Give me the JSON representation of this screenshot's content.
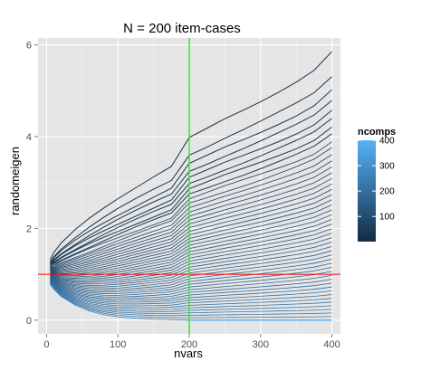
{
  "chart_data": {
    "type": "line",
    "title": "N = 200 item-cases",
    "xlabel": "nvars",
    "ylabel": "randomeigen",
    "xlim": [
      -12,
      412
    ],
    "ylim": [
      -0.3,
      6.15
    ],
    "x_ticks": [
      0,
      100,
      200,
      300,
      400
    ],
    "y_ticks": [
      0,
      2,
      4,
      6
    ],
    "x_tick_labels": [
      "0",
      "100",
      "200",
      "300",
      "400"
    ],
    "y_tick_labels": [
      "0",
      "2",
      "4",
      "6"
    ],
    "grid": true,
    "background_color": "#e5e5e5",
    "grid_color": "#ffffff",
    "legend": {
      "title": "ncomps",
      "placement": "right",
      "range": [
        1,
        400
      ],
      "tick_values": [
        100,
        200,
        300,
        400
      ],
      "tick_labels": [
        "100",
        "200",
        "300",
        "400"
      ],
      "colors": [
        "#132b43",
        "#56b1f7"
      ]
    },
    "series_description": {
      "x": [
        5,
        10,
        20,
        40,
        60,
        80,
        100,
        125,
        150,
        175,
        200,
        225,
        250,
        275,
        300,
        325,
        350,
        375,
        400
      ],
      "top_curve_ncomps_1": [
        1.32,
        1.46,
        1.66,
        1.96,
        2.22,
        2.45,
        2.66,
        2.9,
        3.13,
        3.35,
        3.97,
        4.17,
        4.38,
        4.57,
        4.77,
        4.98,
        5.2,
        5.45,
        5.85
      ],
      "bottom_curve_ncomps_max": [
        0.78,
        0.68,
        0.52,
        0.33,
        0.2,
        0.12,
        0.07,
        0.04,
        0.02,
        0.01,
        0.0,
        0.0,
        0.0,
        0.0,
        0.0,
        0.0,
        0.0,
        0.0,
        0.0
      ],
      "lowest_curve_end": [
        [
          200,
          0.0
        ],
        [
          400,
          0.0
        ]
      ]
    },
    "reference_lines": [
      {
        "orientation": "horizontal",
        "value": 1,
        "color": "#ff0000"
      },
      {
        "orientation": "vertical",
        "value": 200,
        "color": "#33e833"
      }
    ]
  }
}
